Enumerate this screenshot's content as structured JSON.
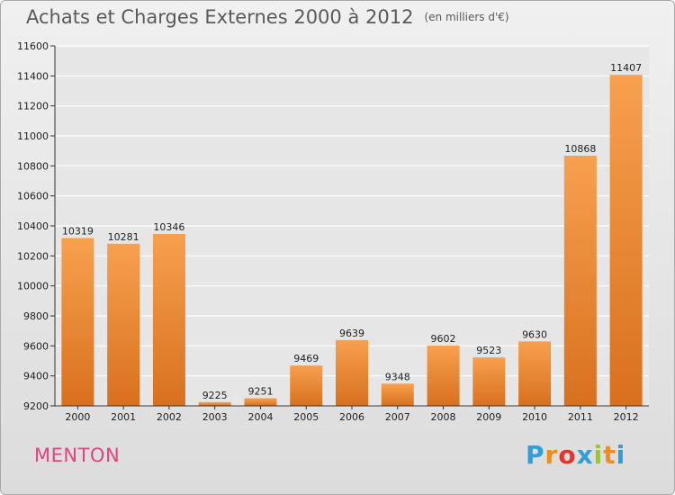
{
  "header": {
    "title": "Achats et Charges Externes 2000 à 2012",
    "subtitle": "(en milliers d'€)"
  },
  "footer": {
    "commune": "MENTON",
    "brand_letters": [
      "P",
      "r",
      "o",
      "x",
      "i",
      "t",
      "i"
    ],
    "brand_colors": [
      "#2e9fd8",
      "#f28c1e",
      "#e3362d",
      "#2e9fd8",
      "#9bc43c",
      "#f28c1e",
      "#2e9fd8"
    ]
  },
  "chart_data": {
    "type": "bar",
    "categories": [
      "2000",
      "2001",
      "2002",
      "2003",
      "2004",
      "2005",
      "2006",
      "2007",
      "2008",
      "2009",
      "2010",
      "2011",
      "2012"
    ],
    "values": [
      10319,
      10281,
      10346,
      9225,
      9251,
      9469,
      9639,
      9348,
      9602,
      9523,
      9630,
      10868,
      11407
    ],
    "ylim": [
      9200,
      11600
    ],
    "yticks": [
      9200,
      9400,
      9600,
      9800,
      10000,
      10200,
      10400,
      10600,
      10800,
      11000,
      11200,
      11400,
      11600
    ],
    "grid": true,
    "bar_color_top": "#f7a04e",
    "bar_color_bottom": "#d8701e",
    "grid_color": "#ffffff"
  }
}
